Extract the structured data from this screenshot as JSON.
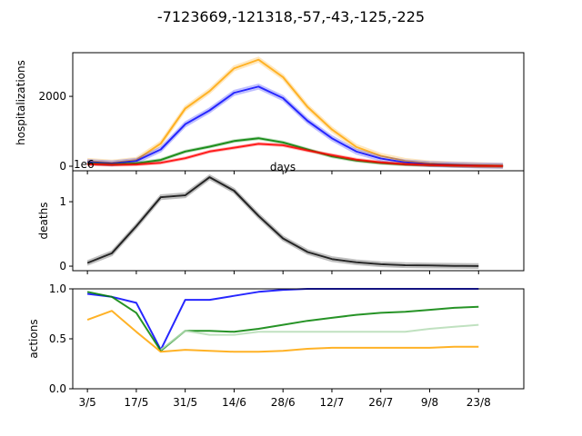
{
  "figure": {
    "title": "-7123669,-121318,-57,-43,-125,-225"
  },
  "chart_data": [
    {
      "type": "line",
      "name": "hospitalizations-panel",
      "ylabel": "hospitalizations",
      "xlabel": "days",
      "x": [
        0,
        1,
        2,
        3,
        4,
        5,
        6,
        7,
        8,
        9,
        10,
        11,
        12,
        13,
        14,
        15,
        16,
        17
      ],
      "xlim": [
        -0.6,
        17.85
      ],
      "ylim": [
        -130,
        3250
      ],
      "yticks": [
        0,
        2000
      ],
      "grid": false,
      "series": [
        {
          "color": "#ffa500",
          "band": 60,
          "values": [
            150,
            100,
            180,
            650,
            1650,
            2150,
            2800,
            3050,
            2550,
            1700,
            1050,
            550,
            300,
            150,
            80,
            50,
            30,
            10
          ]
        },
        {
          "color": "#0000ff",
          "band": 60,
          "values": [
            120,
            80,
            150,
            480,
            1200,
            1600,
            2100,
            2280,
            1950,
            1300,
            800,
            420,
            220,
            110,
            60,
            40,
            20,
            10
          ]
        },
        {
          "color": "#008000",
          "band": 25,
          "values": [
            80,
            50,
            80,
            180,
            420,
            560,
            720,
            800,
            680,
            480,
            280,
            160,
            90,
            50,
            30,
            20,
            10,
            5
          ]
        },
        {
          "color": "#ff0000",
          "band": 25,
          "values": [
            60,
            40,
            50,
            100,
            230,
            420,
            530,
            640,
            600,
            450,
            320,
            190,
            110,
            60,
            35,
            20,
            10,
            5
          ]
        }
      ]
    },
    {
      "type": "line",
      "name": "deaths-panel",
      "ylabel": "deaths",
      "offset_label": "1e6",
      "x": [
        0,
        1,
        2,
        3,
        4,
        5,
        6,
        7,
        8,
        9,
        10,
        11,
        12,
        13,
        14,
        15,
        16
      ],
      "xlim": [
        -0.6,
        17.85
      ],
      "ylim": [
        -0.07,
        1.48
      ],
      "yticks": [
        0,
        1
      ],
      "grid": false,
      "series": [
        {
          "color": "#000000",
          "band": 0.03,
          "values": [
            0.05,
            0.2,
            0.62,
            1.07,
            1.1,
            1.38,
            1.17,
            0.78,
            0.43,
            0.22,
            0.11,
            0.06,
            0.03,
            0.015,
            0.01,
            0.005,
            0.002
          ]
        }
      ]
    },
    {
      "type": "line",
      "name": "actions-panel",
      "ylabel": "actions",
      "x": [
        0,
        1,
        2,
        3,
        4,
        5,
        6,
        7,
        8,
        9,
        10,
        11,
        12,
        13,
        14,
        15,
        16
      ],
      "xlim": [
        -0.6,
        17.85
      ],
      "ylim": [
        0,
        1.0
      ],
      "yticks": [
        0.0,
        0.5,
        1.0
      ],
      "ytick_labels": [
        "0.0",
        "0.5",
        "1.0"
      ],
      "xtick_positions": [
        0,
        2,
        4,
        6,
        8,
        10,
        12,
        14,
        16
      ],
      "xtick_labels": [
        "3/5",
        "17/5",
        "31/5",
        "14/6",
        "28/6",
        "12/7",
        "26/7",
        "9/8",
        "23/8"
      ],
      "grid": false,
      "series": [
        {
          "color": "#0000ff",
          "values": [
            0.95,
            0.92,
            0.86,
            0.39,
            0.89,
            0.89,
            0.93,
            0.97,
            0.99,
            1.0,
            1.0,
            1.0,
            1.0,
            1.0,
            1.0,
            1.0,
            1.0
          ]
        },
        {
          "color": "#008000",
          "values": [
            0.97,
            0.92,
            0.76,
            0.38,
            0.58,
            0.58,
            0.57,
            0.6,
            0.64,
            0.68,
            0.71,
            0.74,
            0.76,
            0.77,
            0.79,
            0.81,
            0.82
          ]
        },
        {
          "color": "#ffa500",
          "values": [
            0.69,
            0.78,
            0.57,
            0.37,
            0.39,
            0.38,
            0.37,
            0.37,
            0.38,
            0.4,
            0.41,
            0.41,
            0.41,
            0.41,
            0.41,
            0.42,
            0.42
          ]
        },
        {
          "color": "#b5dcb5",
          "values": [
            null,
            null,
            null,
            0.39,
            0.58,
            0.54,
            0.54,
            0.57,
            0.57,
            0.57,
            0.57,
            0.57,
            0.57,
            0.57,
            0.6,
            0.62,
            0.64
          ]
        }
      ]
    }
  ]
}
